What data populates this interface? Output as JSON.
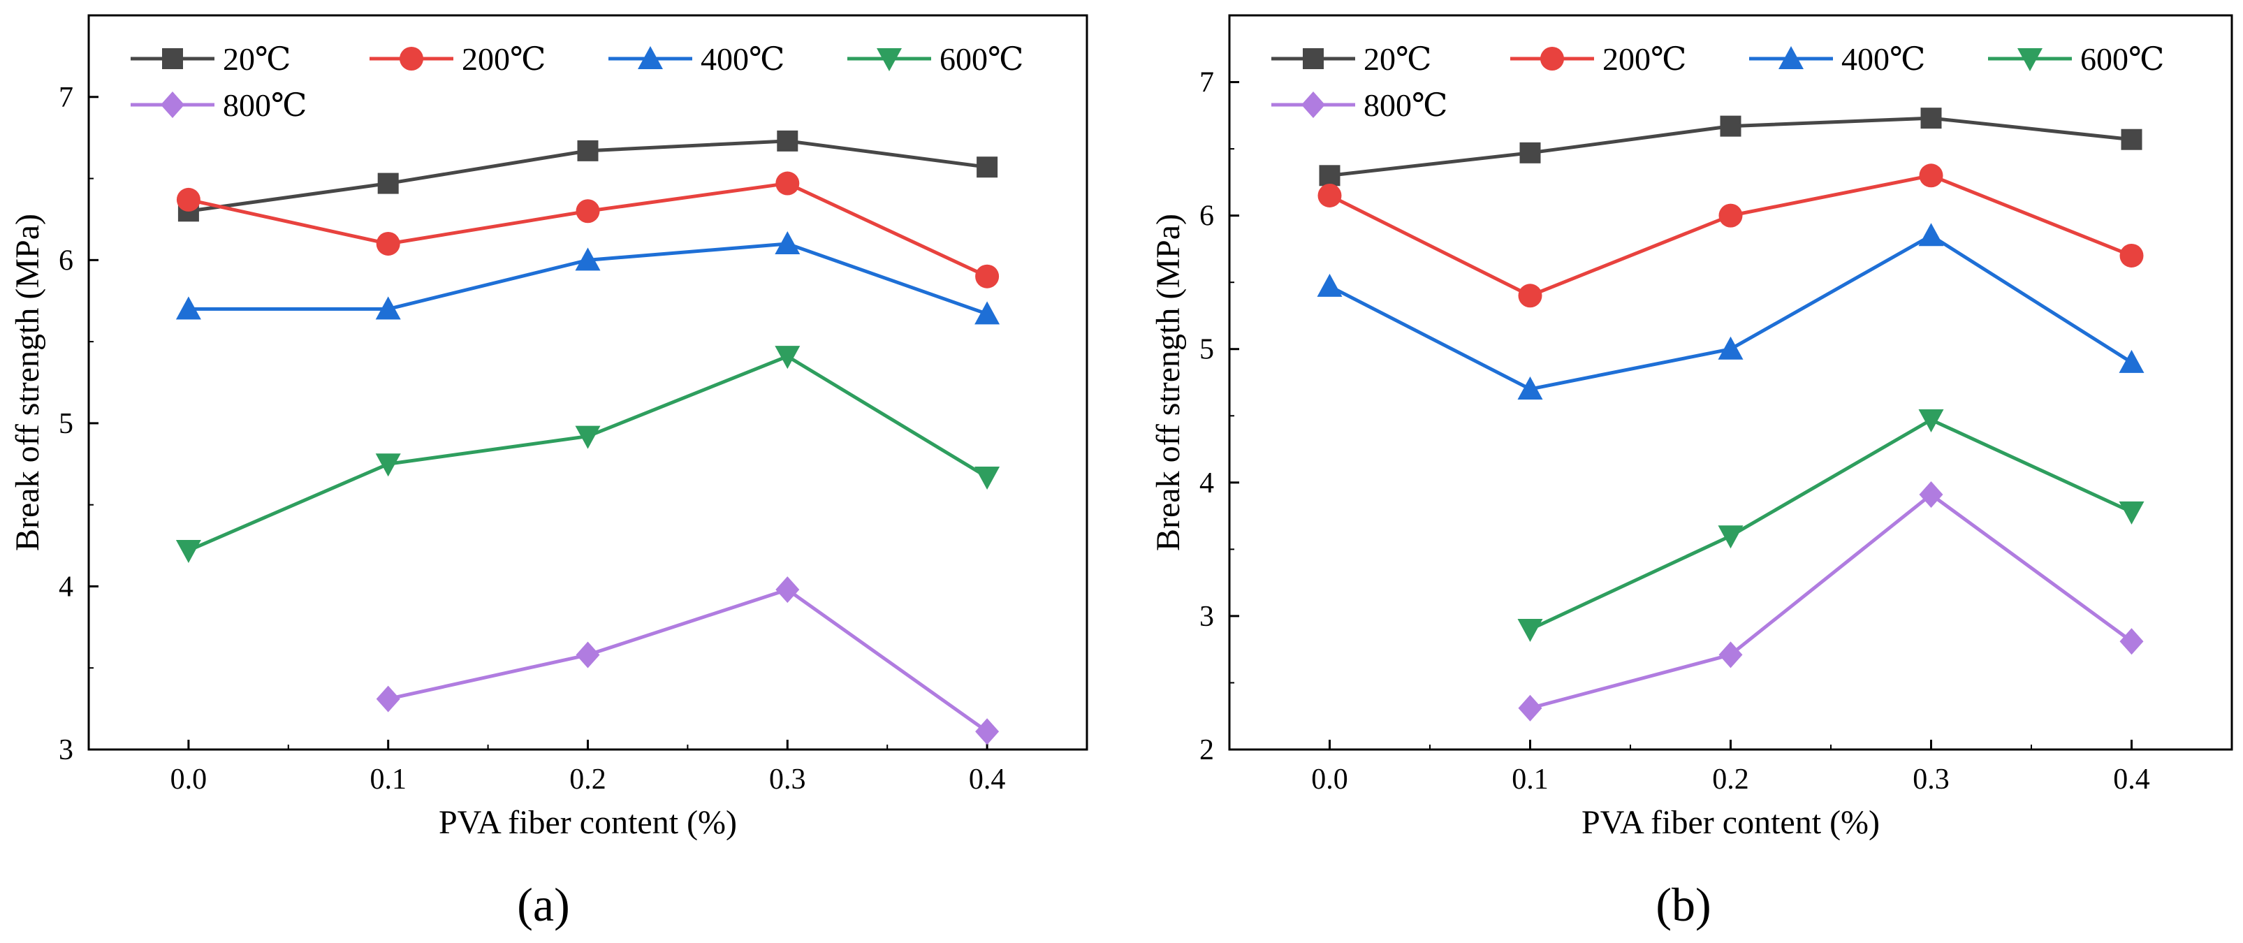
{
  "figure": {
    "panel_labels": [
      "(a)",
      "(b)"
    ]
  },
  "chart_data": [
    {
      "type": "line",
      "panel": "(a)",
      "title": "",
      "xlabel": "PVA fiber content (%)",
      "ylabel": "Break off strength (MPa)",
      "x": [
        0.0,
        0.1,
        0.2,
        0.3,
        0.4
      ],
      "xticks": [
        "0.0",
        "0.1",
        "0.2",
        "0.3",
        "0.4"
      ],
      "xlim": [
        -0.05,
        0.45
      ],
      "ylim": [
        3.0,
        7.5
      ],
      "yticks": [
        "3",
        "4",
        "5",
        "6",
        "7"
      ],
      "legend_position": "top-left",
      "series": [
        {
          "name": "20℃",
          "color": "#474747",
          "marker": "square",
          "values": [
            6.3,
            6.47,
            6.67,
            6.73,
            6.57
          ]
        },
        {
          "name": "200℃",
          "color": "#e8423e",
          "marker": "circle",
          "values": [
            6.37,
            6.1,
            6.3,
            6.47,
            5.9
          ]
        },
        {
          "name": "400℃",
          "color": "#1e6fd6",
          "marker": "triangle-up",
          "values": [
            5.7,
            5.7,
            6.0,
            6.1,
            5.67
          ]
        },
        {
          "name": "600℃",
          "color": "#2e9e5e",
          "marker": "triangle-down",
          "values": [
            4.22,
            4.75,
            4.92,
            5.41,
            4.67
          ]
        },
        {
          "name": "800℃",
          "color": "#b07ce0",
          "marker": "diamond",
          "values": [
            null,
            3.31,
            3.58,
            3.98,
            3.11
          ]
        }
      ]
    },
    {
      "type": "line",
      "panel": "(b)",
      "title": "",
      "xlabel": "PVA fiber content (%)",
      "ylabel": "Break off strength (MPa)",
      "x": [
        0.0,
        0.1,
        0.2,
        0.3,
        0.4
      ],
      "xticks": [
        "0.0",
        "0.1",
        "0.2",
        "0.3",
        "0.4"
      ],
      "xlim": [
        -0.05,
        0.45
      ],
      "ylim": [
        2.0,
        7.5
      ],
      "yticks": [
        "2",
        "3",
        "4",
        "5",
        "6",
        "7"
      ],
      "legend_position": "top-left",
      "series": [
        {
          "name": "20℃",
          "color": "#474747",
          "marker": "square",
          "values": [
            6.3,
            6.47,
            6.67,
            6.73,
            6.57
          ]
        },
        {
          "name": "200℃",
          "color": "#e8423e",
          "marker": "circle",
          "values": [
            6.15,
            5.4,
            6.0,
            6.3,
            5.7
          ]
        },
        {
          "name": "400℃",
          "color": "#1e6fd6",
          "marker": "triangle-up",
          "values": [
            5.47,
            4.7,
            5.0,
            5.85,
            4.9
          ]
        },
        {
          "name": "600℃",
          "color": "#2e9e5e",
          "marker": "triangle-down",
          "values": [
            null,
            2.9,
            3.6,
            4.47,
            3.78
          ]
        },
        {
          "name": "800℃",
          "color": "#b07ce0",
          "marker": "diamond",
          "values": [
            null,
            2.31,
            2.71,
            3.91,
            2.81
          ]
        }
      ]
    }
  ]
}
